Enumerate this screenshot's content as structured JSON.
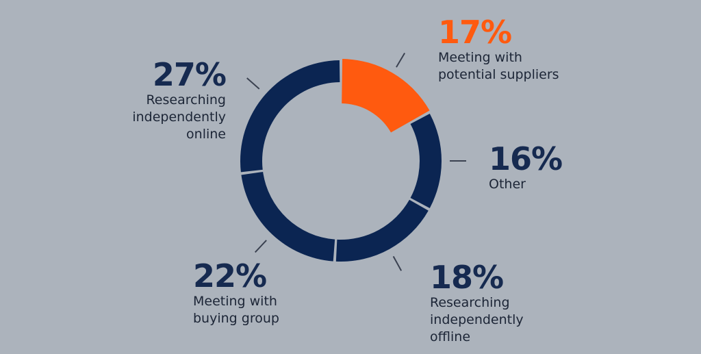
{
  "chart_data": {
    "type": "pie",
    "donut": true,
    "categories": [
      "Meeting with\npotential suppliers",
      "Other",
      "Researching\nindependently\noffline",
      "Meeting with\nbuying group",
      "Researching\nindependently\nonline"
    ],
    "values": [
      17,
      16,
      18,
      22,
      27
    ],
    "labels": [
      "17%",
      "16%",
      "18%",
      "22%",
      "27%"
    ],
    "colors": [
      "#ff5a0f",
      "#0b2552",
      "#0b2552",
      "#0b2552",
      "#0b2552"
    ],
    "label_colors": [
      "#ff5a0f",
      "#162a50",
      "#162a50",
      "#162a50",
      "#162a50"
    ],
    "title": "",
    "legend": "none"
  }
}
